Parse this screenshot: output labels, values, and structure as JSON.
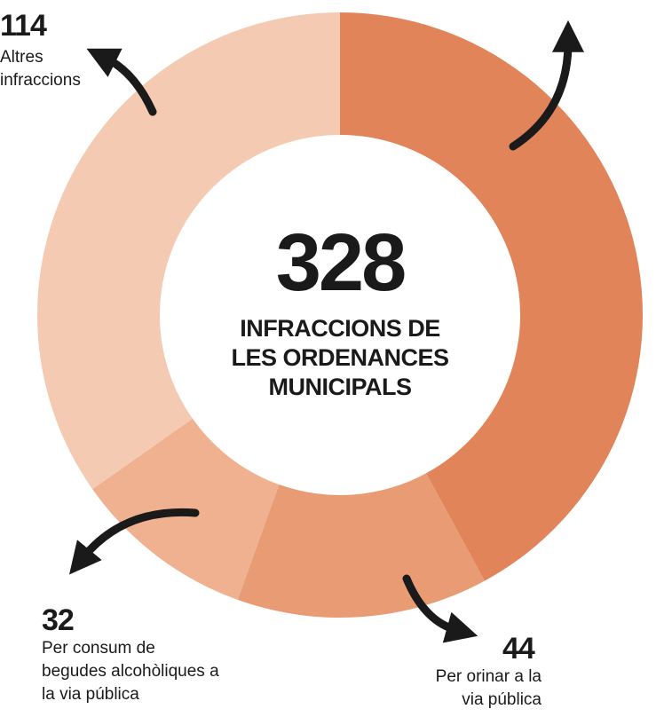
{
  "chart_data": {
    "type": "donut",
    "total": 328,
    "center_label": "INFRACCIONS DE LES ORDENANCES MUNICIPALS",
    "categories": [
      null,
      "Per orinar a la via pública",
      "Per consum de begudes alcohòliques a la via pública",
      "Altres infraccions"
    ],
    "values": [
      138,
      44,
      32,
      114
    ],
    "colors": [
      "#e2845a",
      "#e99b74",
      "#efb190",
      "#f4cbb2"
    ]
  }
}
